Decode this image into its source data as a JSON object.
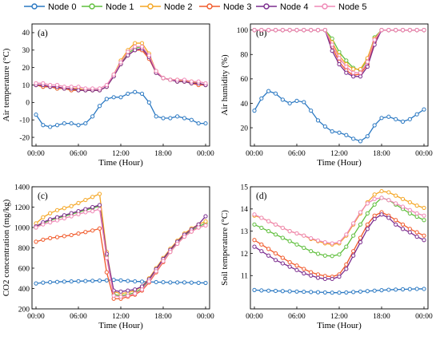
{
  "legend": [
    {
      "name": "Node 0",
      "color": "#2a78c2"
    },
    {
      "name": "Node 1",
      "color": "#5fbf3c"
    },
    {
      "name": "Node 2",
      "color": "#f5a623"
    },
    {
      "name": "Node 3",
      "color": "#f15a2b"
    },
    {
      "name": "Node 4",
      "color": "#7b2c8e"
    },
    {
      "name": "Node 5",
      "color": "#ef88b6"
    }
  ],
  "chart_data": [
    {
      "type": "line",
      "panel_label": "(a)",
      "xlabel": "Time (Hour)",
      "ylabel": "Air temperature (°C)",
      "x_ticks": [
        "00:00",
        "06:00",
        "12:00",
        "18:00",
        "00:00"
      ],
      "x_hours": [
        0,
        1,
        2,
        3,
        4,
        5,
        6,
        7,
        8,
        9,
        10,
        11,
        12,
        13,
        14,
        15,
        16,
        17,
        18,
        19,
        20,
        21,
        22,
        23,
        24
      ],
      "ylim": [
        -25,
        45
      ],
      "y_ticks": [
        -20,
        -10,
        0,
        10,
        20,
        30,
        40
      ],
      "series": [
        {
          "name": "Node 0",
          "values": [
            -7,
            -13,
            -14,
            -13,
            -12,
            -12,
            -13,
            -12,
            -8,
            -2,
            2,
            3,
            3,
            5,
            6,
            5,
            0,
            -8,
            -9,
            -9,
            -8,
            -9,
            -10,
            -12,
            -12
          ]
        },
        {
          "name": "Node 1",
          "values": [
            10,
            9,
            9,
            8,
            8,
            7,
            7,
            7,
            7,
            7,
            9,
            15,
            22,
            28,
            31,
            32,
            26,
            17,
            14,
            13,
            12,
            12,
            11,
            11,
            10
          ]
        },
        {
          "name": "Node 2",
          "values": [
            10,
            10,
            9,
            9,
            8,
            8,
            8,
            7,
            7,
            7,
            9,
            16,
            24,
            30,
            34,
            34,
            28,
            18,
            14,
            13,
            13,
            12,
            12,
            11,
            10
          ]
        },
        {
          "name": "Node 3",
          "values": [
            10,
            9,
            9,
            8,
            8,
            7,
            7,
            7,
            7,
            7,
            9,
            15,
            22,
            27,
            30,
            30,
            25,
            17,
            14,
            13,
            12,
            12,
            11,
            10,
            10
          ]
        },
        {
          "name": "Node 4",
          "values": [
            10,
            10,
            9,
            9,
            8,
            8,
            7,
            7,
            7,
            7,
            9,
            15,
            22,
            27,
            30,
            31,
            26,
            17,
            14,
            13,
            12,
            12,
            11,
            11,
            10
          ]
        },
        {
          "name": "Node 5",
          "values": [
            11,
            11,
            10,
            10,
            9,
            9,
            9,
            8,
            8,
            8,
            10,
            16,
            23,
            29,
            32,
            32,
            27,
            18,
            14,
            13,
            13,
            13,
            12,
            12,
            11
          ]
        }
      ]
    },
    {
      "type": "line",
      "panel_label": "(b)",
      "xlabel": "Time (Hour)",
      "ylabel": "Air humidity (%)",
      "x_ticks": [
        "00:00",
        "06:00",
        "12:00",
        "18:00",
        "00:00"
      ],
      "x_hours": [
        0,
        1,
        2,
        3,
        4,
        5,
        6,
        7,
        8,
        9,
        10,
        11,
        12,
        13,
        14,
        15,
        16,
        17,
        18,
        19,
        20,
        21,
        22,
        23,
        24
      ],
      "ylim": [
        5,
        105
      ],
      "y_ticks": [
        20,
        40,
        60,
        80,
        100
      ],
      "series": [
        {
          "name": "Node 0",
          "values": [
            34,
            44,
            50,
            48,
            43,
            40,
            42,
            41,
            34,
            26,
            21,
            17,
            16,
            14,
            11,
            9,
            13,
            22,
            28,
            29,
            27,
            25,
            27,
            31,
            35
          ]
        },
        {
          "name": "Node 1",
          "values": [
            100,
            100,
            100,
            100,
            100,
            100,
            100,
            100,
            100,
            100,
            100,
            93,
            82,
            75,
            69,
            67,
            76,
            94,
            100,
            100,
            100,
            100,
            100,
            100,
            100
          ]
        },
        {
          "name": "Node 2",
          "values": [
            100,
            100,
            100,
            100,
            100,
            100,
            100,
            100,
            100,
            100,
            100,
            90,
            79,
            72,
            68,
            68,
            77,
            93,
            100,
            100,
            100,
            100,
            100,
            100,
            100
          ]
        },
        {
          "name": "Node 3",
          "values": [
            100,
            100,
            100,
            100,
            100,
            100,
            100,
            100,
            100,
            100,
            100,
            86,
            74,
            67,
            63,
            64,
            72,
            90,
            100,
            100,
            100,
            100,
            100,
            100,
            100
          ]
        },
        {
          "name": "Node 4",
          "values": [
            100,
            100,
            100,
            100,
            100,
            100,
            100,
            100,
            100,
            100,
            100,
            83,
            72,
            65,
            62,
            62,
            70,
            88,
            100,
            100,
            100,
            100,
            100,
            100,
            100
          ]
        },
        {
          "name": "Node 5",
          "values": [
            100,
            100,
            100,
            100,
            100,
            100,
            100,
            100,
            100,
            100,
            100,
            88,
            77,
            70,
            65,
            65,
            74,
            92,
            100,
            100,
            100,
            100,
            100,
            100,
            100
          ]
        }
      ]
    },
    {
      "type": "line",
      "panel_label": "(c)",
      "xlabel": "Time (Hour)",
      "ylabel": "CO2 concentration (mg/kg)",
      "x_ticks": [
        "00:00",
        "06:00",
        "12:00",
        "18:00",
        "00:00"
      ],
      "x_hours": [
        0,
        1,
        2,
        3,
        4,
        5,
        6,
        7,
        8,
        9,
        10,
        11,
        12,
        13,
        14,
        15,
        16,
        17,
        18,
        19,
        20,
        21,
        22,
        23,
        24
      ],
      "ylim": [
        200,
        1400
      ],
      "y_ticks": [
        200,
        400,
        600,
        800,
        1000,
        1200,
        1400
      ],
      "series": [
        {
          "name": "Node 0",
          "values": [
            450,
            458,
            462,
            465,
            468,
            470,
            472,
            474,
            476,
            478,
            480,
            485,
            480,
            475,
            470,
            468,
            465,
            463,
            462,
            460,
            460,
            460,
            458,
            456,
            455
          ]
        },
        {
          "name": "Node 1",
          "values": [
            1000,
            1040,
            1070,
            1090,
            1110,
            1130,
            1150,
            1170,
            1190,
            1210,
            720,
            340,
            330,
            340,
            360,
            400,
            480,
            580,
            680,
            770,
            850,
            920,
            970,
            1010,
            1040
          ]
        },
        {
          "name": "Node 2",
          "values": [
            1040,
            1100,
            1140,
            1170,
            1190,
            1210,
            1240,
            1270,
            1300,
            1330,
            760,
            370,
            350,
            360,
            380,
            420,
            500,
            600,
            700,
            790,
            870,
            940,
            990,
            1030,
            1060
          ]
        },
        {
          "name": "Node 3",
          "values": [
            860,
            880,
            895,
            905,
            915,
            925,
            940,
            955,
            970,
            990,
            560,
            300,
            300,
            320,
            340,
            380,
            460,
            560,
            660,
            760,
            840,
            910,
            960,
            1000,
            1020
          ]
        },
        {
          "name": "Node 4",
          "values": [
            1010,
            1050,
            1080,
            1100,
            1120,
            1140,
            1160,
            1180,
            1200,
            1220,
            740,
            380,
            370,
            380,
            390,
            420,
            490,
            590,
            690,
            780,
            860,
            930,
            980,
            1030,
            1110
          ]
        },
        {
          "name": "Node 5",
          "values": [
            1000,
            1030,
            1050,
            1070,
            1090,
            1110,
            1130,
            1150,
            1160,
            1180,
            700,
            330,
            320,
            330,
            350,
            390,
            470,
            570,
            670,
            760,
            840,
            910,
            960,
            1000,
            1020
          ]
        }
      ]
    },
    {
      "type": "line",
      "panel_label": "(d)",
      "xlabel": "Time (Hour)",
      "ylabel": "Soil temperature (°C)",
      "x_ticks": [
        "00:00",
        "06:00",
        "12:00",
        "18:00",
        "00:00"
      ],
      "x_hours": [
        0,
        1,
        2,
        3,
        4,
        5,
        6,
        7,
        8,
        9,
        10,
        11,
        12,
        13,
        14,
        15,
        16,
        17,
        18,
        19,
        20,
        21,
        22,
        23,
        24
      ],
      "ylim": [
        9.5,
        15
      ],
      "y_ticks": [
        11,
        12,
        13,
        14,
        15
      ],
      "series": [
        {
          "name": "Node 0",
          "values": [
            10.35,
            10.33,
            10.32,
            10.31,
            10.3,
            10.29,
            10.28,
            10.27,
            10.26,
            10.25,
            10.24,
            10.23,
            10.23,
            10.24,
            10.26,
            10.28,
            10.3,
            10.32,
            10.34,
            10.36,
            10.37,
            10.38,
            10.39,
            10.4,
            10.4
          ]
        },
        {
          "name": "Node 1",
          "values": [
            13.3,
            13.15,
            13.0,
            12.85,
            12.7,
            12.55,
            12.4,
            12.25,
            12.1,
            11.98,
            11.9,
            11.88,
            11.95,
            12.3,
            12.8,
            13.3,
            13.8,
            14.2,
            14.5,
            14.4,
            14.2,
            14.0,
            13.8,
            13.65,
            13.5
          ]
        },
        {
          "name": "Node 2",
          "values": [
            13.7,
            13.6,
            13.45,
            13.3,
            13.15,
            13.0,
            12.9,
            12.8,
            12.65,
            12.55,
            12.45,
            12.4,
            12.45,
            12.8,
            13.3,
            13.8,
            14.3,
            14.65,
            14.8,
            14.75,
            14.6,
            14.45,
            14.3,
            14.15,
            14.05
          ]
        },
        {
          "name": "Node 3",
          "values": [
            12.6,
            12.4,
            12.2,
            12.0,
            11.8,
            11.6,
            11.45,
            11.3,
            11.15,
            11.05,
            10.98,
            10.95,
            11.05,
            11.5,
            12.1,
            12.7,
            13.3,
            13.7,
            13.85,
            13.7,
            13.5,
            13.3,
            13.1,
            12.95,
            12.8
          ]
        },
        {
          "name": "Node 4",
          "values": [
            12.3,
            12.1,
            11.9,
            11.7,
            11.55,
            11.4,
            11.25,
            11.1,
            11.0,
            10.9,
            10.85,
            10.85,
            10.95,
            11.3,
            11.9,
            12.5,
            13.1,
            13.55,
            13.75,
            13.6,
            13.3,
            13.1,
            12.95,
            12.75,
            12.6
          ]
        },
        {
          "name": "Node 5",
          "values": [
            13.75,
            13.6,
            13.45,
            13.3,
            13.15,
            13.0,
            12.9,
            12.8,
            12.68,
            12.58,
            12.5,
            12.45,
            12.5,
            12.85,
            13.35,
            13.85,
            14.25,
            14.45,
            14.5,
            14.4,
            14.25,
            14.1,
            13.95,
            13.8,
            13.7
          ]
        }
      ]
    }
  ]
}
